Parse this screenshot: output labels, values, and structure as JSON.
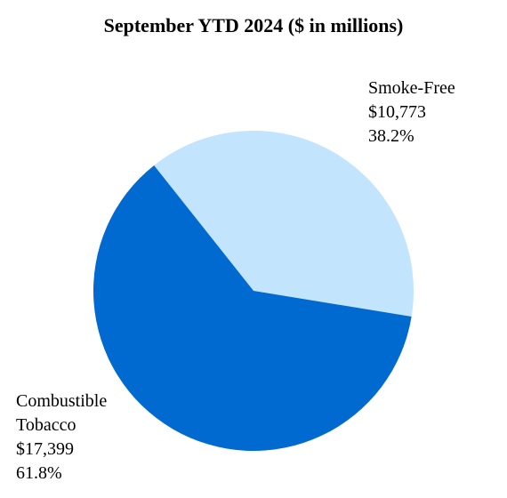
{
  "chart_data": {
    "type": "pie",
    "title": "September YTD 2024 ($ in millions)",
    "slices": [
      {
        "name": "Smoke-Free",
        "label_lines": [
          "Smoke-Free"
        ],
        "value": 10773,
        "value_label": "$10,773",
        "percent": 38.2,
        "percent_label": "38.2%",
        "color": "#c2e4fc"
      },
      {
        "name": "Combustible Tobacco",
        "label_lines": [
          "Combustible",
          "Tobacco"
        ],
        "value": 17399,
        "value_label": "$17,399",
        "percent": 61.8,
        "percent_label": "61.8%",
        "color": "#006ad1"
      }
    ]
  }
}
